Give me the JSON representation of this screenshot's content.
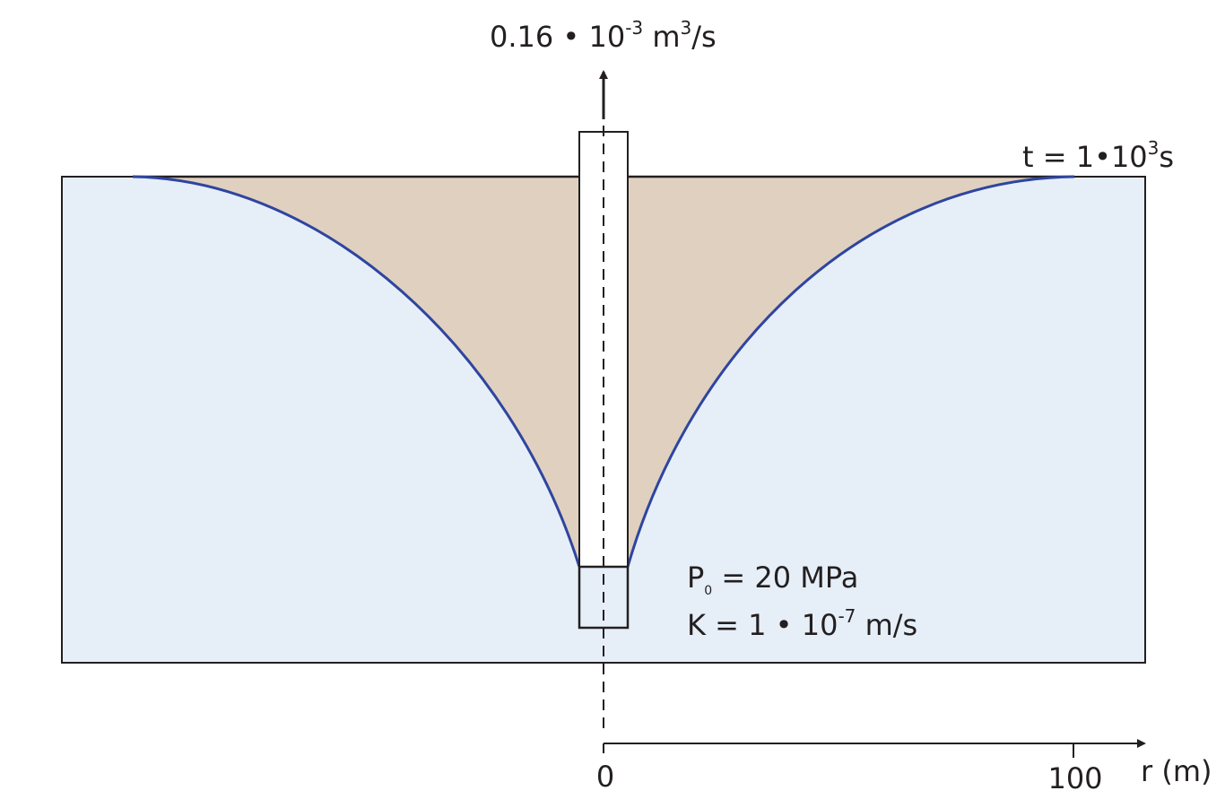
{
  "flow_rate": {
    "base": "0.16 • 10",
    "exp": "-3",
    "unit": " m",
    "unit_exp": "3",
    "unit_tail": "/s"
  },
  "time_label": {
    "base": "t = 1•10",
    "exp": "3",
    "tail": "s"
  },
  "params": {
    "pressure": {
      "symbol": "P",
      "sub": "0",
      "value": " = 20  MPa"
    },
    "conductivity": {
      "base": "K = 1 • 10",
      "exp": "-7",
      "tail": " m/s"
    }
  },
  "axis": {
    "label": "r (m)",
    "ticks": [
      "0",
      "100"
    ]
  },
  "colors": {
    "aquifer": "#e6eff8",
    "drawdown": "#e0d0bf",
    "curve": "#2e45a0",
    "line": "#231f20"
  }
}
